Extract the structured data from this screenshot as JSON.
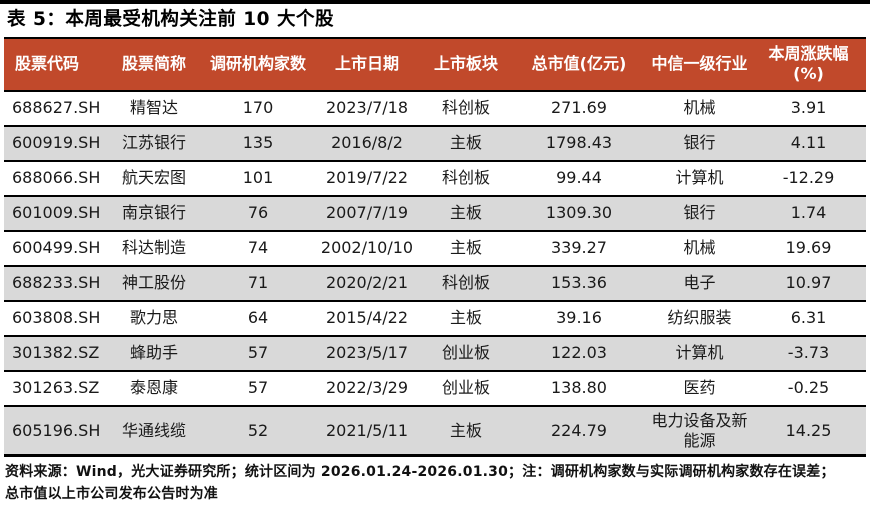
{
  "title": "表 5：本周最受机构关注前 10 大个股",
  "table": {
    "columns": [
      "股票代码",
      "股票简称",
      "调研机构家数",
      "上市日期",
      "上市板块",
      "总市值(亿元)",
      "中信一级行业",
      "本周涨跌幅\n(%)"
    ],
    "rows": [
      [
        "688627.SH",
        "精智达",
        "170",
        "2023/7/18",
        "科创板",
        "271.69",
        "机械",
        "3.91"
      ],
      [
        "600919.SH",
        "江苏银行",
        "135",
        "2016/8/2",
        "主板",
        "1798.43",
        "银行",
        "4.11"
      ],
      [
        "688066.SH",
        "航天宏图",
        "101",
        "2019/7/22",
        "科创板",
        "99.44",
        "计算机",
        "-12.29"
      ],
      [
        "601009.SH",
        "南京银行",
        "76",
        "2007/7/19",
        "主板",
        "1309.30",
        "银行",
        "1.74"
      ],
      [
        "600499.SH",
        "科达制造",
        "74",
        "2002/10/10",
        "主板",
        "339.27",
        "机械",
        "19.69"
      ],
      [
        "688233.SH",
        "神工股份",
        "71",
        "2020/2/21",
        "科创板",
        "153.36",
        "电子",
        "10.97"
      ],
      [
        "603808.SH",
        "歌力思",
        "64",
        "2015/4/22",
        "主板",
        "39.16",
        "纺织服装",
        "6.31"
      ],
      [
        "301382.SZ",
        "蜂助手",
        "57",
        "2023/5/17",
        "创业板",
        "122.03",
        "计算机",
        "-3.73"
      ],
      [
        "301263.SZ",
        "泰恩康",
        "57",
        "2022/3/29",
        "创业板",
        "138.80",
        "医药",
        "-0.25"
      ],
      [
        "605196.SH",
        "华通线缆",
        "52",
        "2021/5/11",
        "主板",
        "224.79",
        "电力设备及新能源",
        "14.25"
      ]
    ]
  },
  "footer": "资料来源：Wind，光大证券研究所；统计区间为 2026.01.24-2026.01.30；注：调研机构家数与实际调研机构家数存在误差；总市值以上市公司发布公告时为准",
  "colors": {
    "header_bg": "#C1492B",
    "header_text": "#FFFFFF",
    "row_alt_bg": "#D9D9D9",
    "rule": "#000000",
    "top_bar": "#000000"
  }
}
